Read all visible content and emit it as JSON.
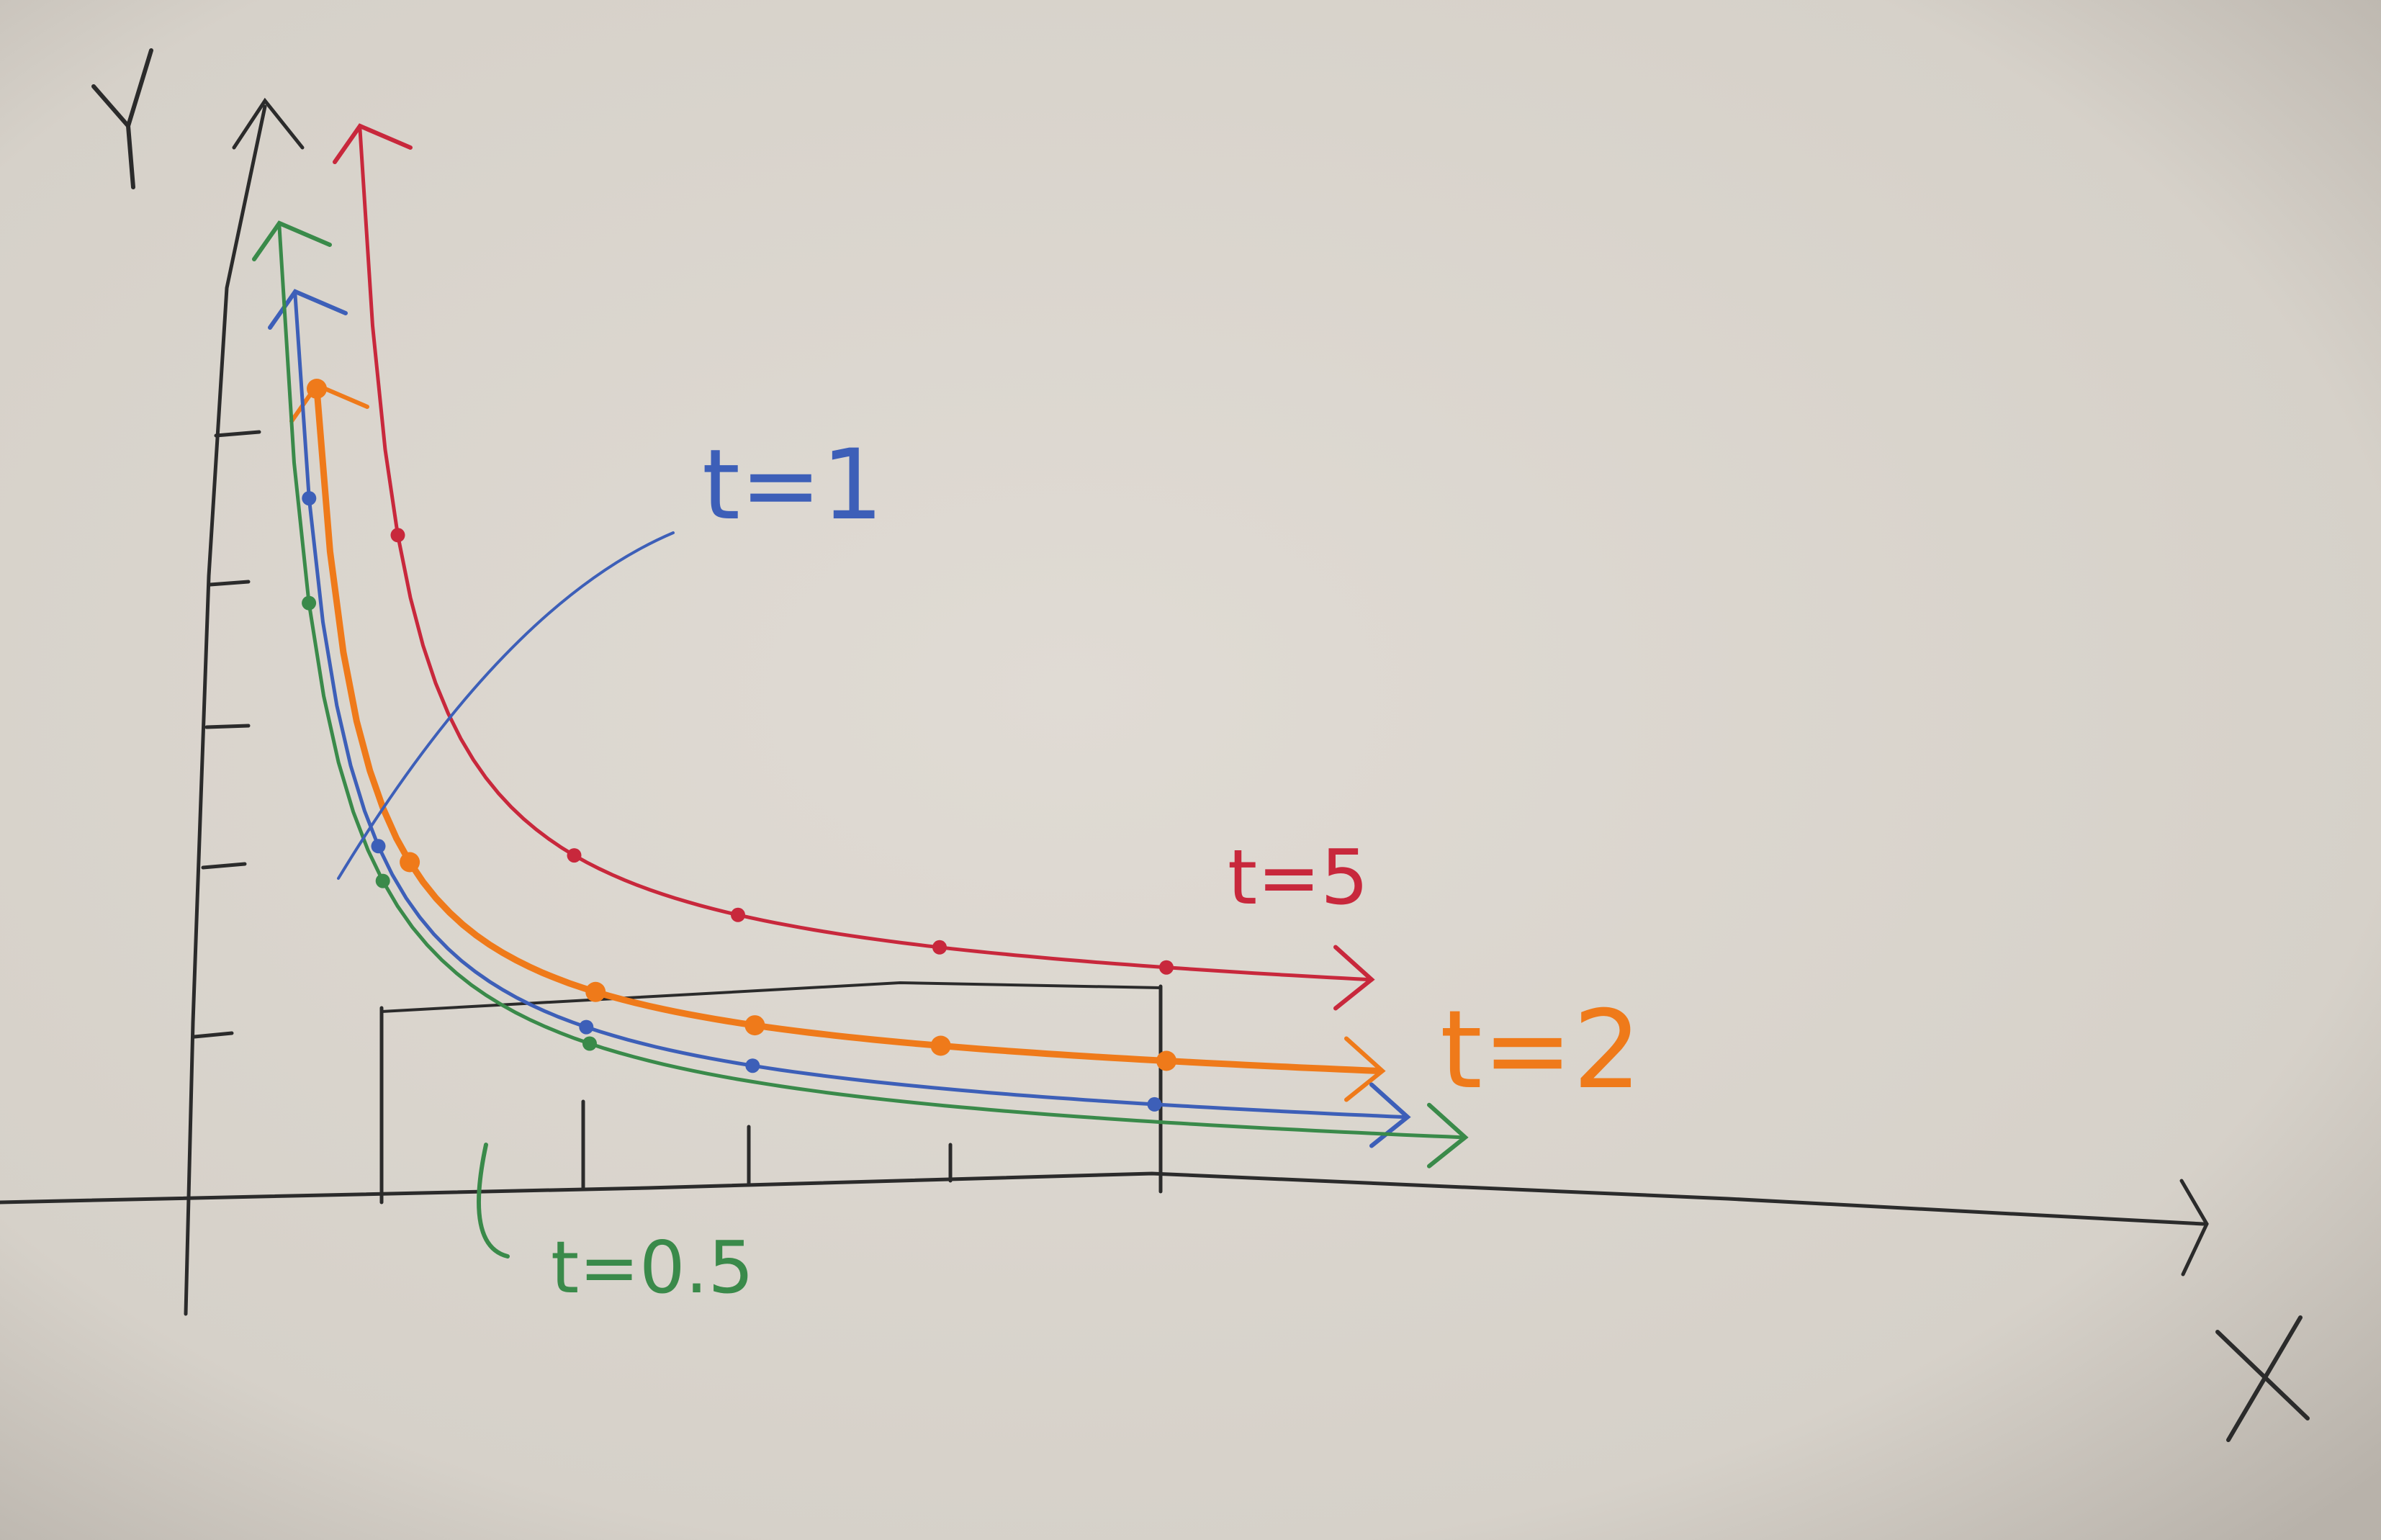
{
  "axes": {
    "y_label": "Y",
    "x_label": "X",
    "ink_color": "#2b2b2b"
  },
  "paper_color": "#dcd7d0",
  "curves": [
    {
      "label": "t=5",
      "color": "#c8283c",
      "k": 5
    },
    {
      "label": "t=2",
      "color": "#ef7a1a",
      "k": 2
    },
    {
      "label": "t=1",
      "color": "#3d5fb8",
      "k": 1
    },
    {
      "label": "t=0.5",
      "color": "#3a8a4a",
      "k": 0.5
    }
  ],
  "labels": {
    "t5": "t=5",
    "t2": "t=2",
    "t1": "t=1",
    "t05": "t=0.5"
  }
}
